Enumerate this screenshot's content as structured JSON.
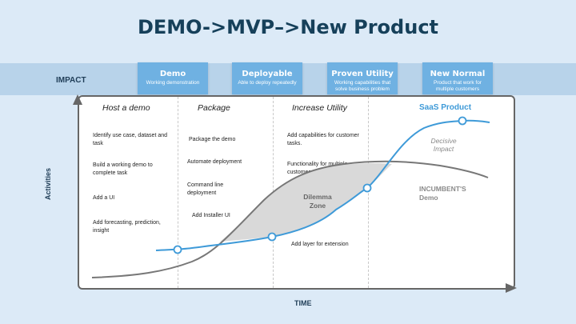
{
  "title": "DEMO->MVP–>New Product",
  "impact_label": "IMPACT",
  "stages": [
    {
      "title": "Demo",
      "subtitle": "Working demonstration"
    },
    {
      "title": "Deployable",
      "subtitle": "Able to deploy repeatedly"
    },
    {
      "title": "Proven Utility",
      "subtitle": "Working capabilities that solve business problem"
    },
    {
      "title": "New Normal",
      "subtitle": "Product that work for multiple customers"
    }
  ],
  "columns": [
    {
      "heading": "Host a demo",
      "tasks": [
        "Identify use case, dataset and task",
        "Build a working demo to complete task",
        "Add a UI",
        "Add forecasting, prediction, insight"
      ]
    },
    {
      "heading": "Package",
      "tasks": [
        "Package the demo",
        "Automate deployment",
        "Command line deployment",
        "Add Installer UI"
      ]
    },
    {
      "heading": "Increase Utility",
      "tasks": [
        "Add capabilities for customer tasks.",
        "Functionality for multiple customers",
        "Add layer for extension"
      ]
    }
  ],
  "saas_label": "SaaS Product",
  "decisive_label": "Decisive Impact",
  "incumbent_label": "INCUMBENT'S Demo",
  "dilemma_label": "Dilemma Zone",
  "y_axis_label": "Activities",
  "x_axis_label": "TIME",
  "colors": {
    "background": "#dceaf7",
    "band": "#b8d3ea",
    "stage": "#6fb1e2",
    "title": "#16405a",
    "blue_curve": "#3e9ad8",
    "gray_curve": "#777777",
    "dilemma_fill": "#d9d9d9"
  }
}
